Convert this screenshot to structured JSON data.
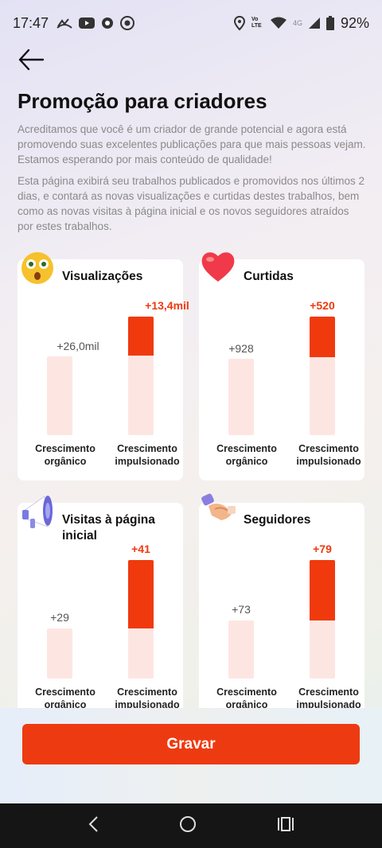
{
  "status_bar": {
    "time": "17:47",
    "battery": "92%",
    "network": "4G",
    "volte": "Vo LTE"
  },
  "header": {
    "title": "Promoção para criadores"
  },
  "intro": {
    "p1": "Acreditamos que você é um criador de grande potencial e agora está promovendo suas excelentes publicações para que mais pessoas vejam. Estamos esperando por mais conteúdo de qualidade!",
    "p2": "Esta página exibirá seu trabalhos publicados e promovidos nos últimos 2 dias, e contará as novas visualizações e curtidas destes trabalhos, bem como as novas visitas à página inicial e os novos seguidores atraídos por estes trabalhos."
  },
  "labels": {
    "organic": "Crescimento orgânico",
    "boosted": "Crescimento impulsionado"
  },
  "cards": [
    {
      "title": "Visualizações",
      "icon": "surprised-face-icon",
      "organic": "+26,0mil",
      "boosted": "+13,4mil",
      "organic_value": 26000,
      "boosted_value": 13400
    },
    {
      "title": "Curtidas",
      "icon": "heart-icon",
      "organic": "+928",
      "boosted": "+520",
      "organic_value": 928,
      "boosted_value": 520
    },
    {
      "title": "Visitas à página inicial",
      "icon": "megaphone-icon",
      "organic": "+29",
      "boosted": "+41",
      "organic_value": 29,
      "boosted_value": 41
    },
    {
      "title": "Seguidores",
      "icon": "handshake-icon",
      "organic": "+73",
      "boosted": "+79",
      "organic_value": 73,
      "boosted_value": 79
    }
  ],
  "action": {
    "record_label": "Gravar"
  },
  "colors": {
    "accent": "#ee3a10",
    "bar_light": "#fde6e2"
  }
}
